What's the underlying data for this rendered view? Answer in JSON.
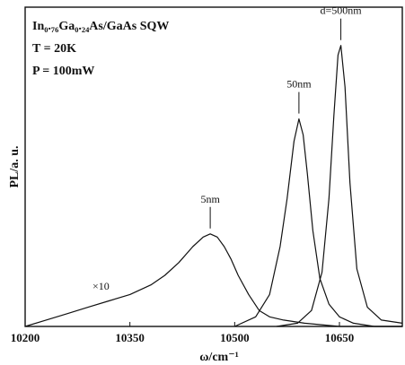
{
  "chart_data": {
    "type": "line",
    "xlabel": "ω/cm⁻¹",
    "ylabel": "PL/a. u.",
    "xlim": [
      10200,
      10740
    ],
    "ylim": [
      0,
      1.0
    ],
    "x_ticks": [
      {
        "value": 10200,
        "label": "10200"
      },
      {
        "value": 10350,
        "label": "10350"
      },
      {
        "value": 10500,
        "label": "10500"
      },
      {
        "value": 10650,
        "label": "10650"
      }
    ],
    "info_lines": [
      "In₀.₇₆Ga₀.₂₄As/GaAs SQW",
      "T = 20K",
      "P = 100mW"
    ],
    "multiplier_label": "×10",
    "series": [
      {
        "name": "5nm",
        "x": [
          10200,
          10230,
          10260,
          10290,
          10320,
          10350,
          10380,
          10400,
          10420,
          10440,
          10455,
          10465,
          10475,
          10485,
          10495,
          10505,
          10520,
          10535,
          10550,
          10570,
          10600,
          10650,
          10700,
          10740
        ],
        "y": [
          0.0,
          0.02,
          0.04,
          0.06,
          0.08,
          0.1,
          0.13,
          0.16,
          0.2,
          0.25,
          0.28,
          0.29,
          0.28,
          0.25,
          0.21,
          0.16,
          0.1,
          0.05,
          0.03,
          0.02,
          0.01,
          0.0,
          0.0,
          0.0
        ]
      },
      {
        "name": "50nm",
        "x": [
          10500,
          10530,
          10550,
          10565,
          10575,
          10585,
          10592,
          10598,
          10604,
          10612,
          10622,
          10635,
          10650,
          10670,
          10700,
          10740
        ],
        "y": [
          0.0,
          0.03,
          0.1,
          0.25,
          0.4,
          0.58,
          0.65,
          0.6,
          0.48,
          0.3,
          0.15,
          0.07,
          0.03,
          0.01,
          0.0,
          0.0
        ]
      },
      {
        "name": "500nm",
        "x": [
          10560,
          10590,
          10610,
          10625,
          10635,
          10642,
          10648,
          10652,
          10658,
          10665,
          10675,
          10690,
          10710,
          10740
        ],
        "y": [
          0.0,
          0.01,
          0.05,
          0.17,
          0.4,
          0.66,
          0.85,
          0.88,
          0.75,
          0.45,
          0.18,
          0.06,
          0.02,
          0.01
        ]
      }
    ],
    "annotations": [
      {
        "text": "5nm",
        "series": "5nm",
        "x": 10465
      },
      {
        "text": "50nm",
        "series": "50nm",
        "x": 10592
      },
      {
        "text": "d=500nm",
        "series": "500nm",
        "x": 10652
      }
    ]
  }
}
